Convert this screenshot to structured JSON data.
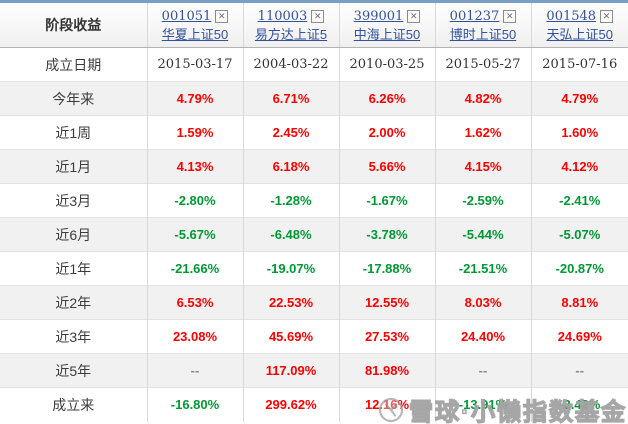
{
  "table": {
    "corner_label": "阶段收益",
    "funds": [
      {
        "code": "001051",
        "name": "华夏上证50"
      },
      {
        "code": "110003",
        "name": "易方达上证5"
      },
      {
        "code": "399001",
        "name": "中海上证50"
      },
      {
        "code": "001237",
        "name": "博时上证50"
      },
      {
        "code": "001548",
        "name": "天弘上证50"
      }
    ],
    "close_icon_glyph": "✕",
    "rows": [
      {
        "label": "成立日期",
        "type": "date",
        "values": [
          "2015-03-17",
          "2004-03-22",
          "2010-03-25",
          "2015-05-27",
          "2015-07-16"
        ]
      },
      {
        "label": "今年来",
        "type": "pct",
        "values": [
          "4.79%",
          "6.71%",
          "6.26%",
          "4.82%",
          "4.79%"
        ]
      },
      {
        "label": "近1周",
        "type": "pct",
        "values": [
          "1.59%",
          "2.45%",
          "2.00%",
          "1.62%",
          "1.60%"
        ]
      },
      {
        "label": "近1月",
        "type": "pct",
        "values": [
          "4.13%",
          "6.18%",
          "5.66%",
          "4.15%",
          "4.12%"
        ]
      },
      {
        "label": "近3月",
        "type": "pct",
        "values": [
          "-2.80%",
          "-1.28%",
          "-1.67%",
          "-2.59%",
          "-2.41%"
        ]
      },
      {
        "label": "近6月",
        "type": "pct",
        "values": [
          "-5.67%",
          "-6.48%",
          "-3.78%",
          "-5.44%",
          "-5.07%"
        ]
      },
      {
        "label": "近1年",
        "type": "pct",
        "values": [
          "-21.66%",
          "-19.07%",
          "-17.88%",
          "-21.51%",
          "-20.87%"
        ]
      },
      {
        "label": "近2年",
        "type": "pct",
        "values": [
          "6.53%",
          "22.53%",
          "12.55%",
          "8.03%",
          "8.81%"
        ]
      },
      {
        "label": "近3年",
        "type": "pct",
        "values": [
          "23.08%",
          "45.69%",
          "27.53%",
          "24.40%",
          "24.69%"
        ]
      },
      {
        "label": "近5年",
        "type": "pct",
        "values": [
          "--",
          "117.09%",
          "81.98%",
          "--",
          "--"
        ]
      },
      {
        "label": "成立来",
        "type": "pct",
        "values": [
          "-16.80%",
          "299.62%",
          "12.16%",
          "-13.91%",
          "-3.42%"
        ]
      }
    ]
  },
  "watermark": {
    "text": "雪球·小懒指数基金"
  },
  "colors": {
    "positive": "#ff0000",
    "negative": "#009933",
    "link_blue": "#33519e",
    "top_border": "#7b9ec5",
    "stripe": "#f1f1f1"
  }
}
